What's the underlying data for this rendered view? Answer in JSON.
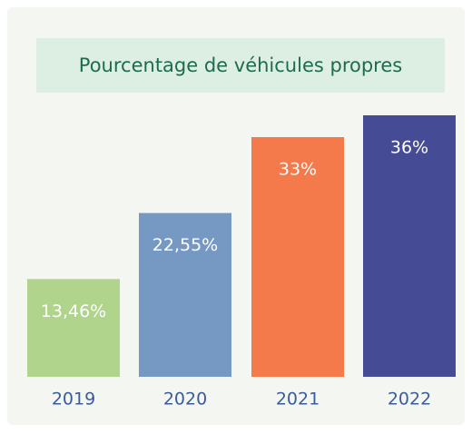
{
  "chart_data": {
    "type": "bar",
    "title": "Pourcentage de véhicules propres",
    "categories": [
      "2019",
      "2020",
      "2021",
      "2022"
    ],
    "values": [
      13.46,
      22.55,
      33,
      36
    ],
    "value_labels": [
      "13,46%",
      "22,55%",
      "33%",
      "36%"
    ],
    "colors": [
      "#b0d48c",
      "#7699c4",
      "#f47a4c",
      "#454b94"
    ]
  }
}
